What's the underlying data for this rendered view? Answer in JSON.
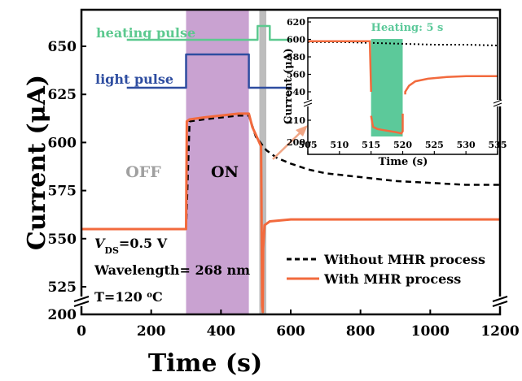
{
  "chart_data": {
    "type": "line",
    "xlabel": "Time (s)",
    "ylabel": "Current (μA)",
    "xlim": [
      0,
      1200
    ],
    "x_ticks": [
      "0",
      "200",
      "400",
      "600",
      "800",
      "1000",
      "1200"
    ],
    "y_ticks": [
      "200",
      "525",
      "550",
      "575",
      "600",
      "625",
      "650"
    ],
    "y_axis_break": [
      210,
      525
    ],
    "grid": false,
    "legend_position": "bottom-right",
    "shaded_regions": [
      {
        "x0": 300,
        "x1": 480,
        "color": "#c9a2d1"
      },
      {
        "x0": 510,
        "x1": 530,
        "color": "#bdbdbd"
      }
    ],
    "annotations": {
      "off_label": "OFF",
      "on_label": "ON",
      "heating_pulse_label": "heating pulse",
      "light_pulse_label": "light pulse",
      "vds_symbol": "V",
      "vds_subscript": "DS",
      "vds_value": "=0.5 V",
      "wavelength": "Wavelength= 268 nm",
      "temp_prefix": "T=120 ",
      "temp_degree": "o",
      "temp_unit": "C"
    },
    "series": [
      {
        "name": "Without MHR process",
        "style": "dashed",
        "color": "#000000",
        "x": [
          300,
          310,
          350,
          400,
          450,
          480,
          500,
          530,
          560,
          600,
          650,
          700,
          800,
          900,
          1000,
          1100,
          1200
        ],
        "y": [
          555,
          611,
          612,
          613,
          614,
          614,
          603,
          596,
          592,
          589,
          586,
          584,
          582,
          580,
          579,
          578,
          578
        ]
      },
      {
        "name": "With MHR process",
        "style": "solid",
        "color": "#f26a3d",
        "x": [
          0,
          100,
          200,
          300,
          302,
          310,
          350,
          400,
          450,
          480,
          490,
          500,
          510,
          515,
          516,
          518,
          520,
          521,
          525,
          540,
          600,
          800,
          1000,
          1200
        ],
        "y": [
          555,
          555,
          555,
          555,
          611,
          612,
          613,
          614,
          615,
          615,
          608,
          604,
          600,
          598,
          575,
          207,
          202,
          545,
          557,
          559,
          560,
          560,
          560,
          560
        ]
      },
      {
        "name": "heating pulse",
        "color": "#5cc98f",
        "x": [
          130,
          505,
          505,
          540,
          540,
          600
        ],
        "y": [
          0,
          0,
          1,
          1,
          0,
          0
        ]
      },
      {
        "name": "light pulse",
        "color": "#2e4da0",
        "x": [
          130,
          300,
          300,
          480,
          480,
          600
        ],
        "y": [
          0,
          0,
          1,
          1,
          0,
          0
        ]
      }
    ],
    "inset": {
      "title": "Heating: 5 s",
      "xlabel": "Time (s)",
      "ylabel": "Current (μA)",
      "xlim": [
        505,
        535
      ],
      "x_ticks": [
        "505",
        "510",
        "515",
        "520",
        "525",
        "530",
        "535"
      ],
      "y_ticks": [
        "200",
        "210",
        "540",
        "560",
        "580",
        "600",
        "620"
      ],
      "y_axis_break": [
        215,
        535
      ],
      "shaded_region": {
        "x0": 515,
        "x1": 520,
        "color": "#5cc99a"
      },
      "series": [
        {
          "name": "Without MHR process",
          "style": "dotted",
          "x": [
            505,
            510,
            515,
            520,
            525,
            530,
            535
          ],
          "y": [
            597,
            597,
            596,
            595,
            594,
            594,
            593
          ]
        },
        {
          "name": "With MHR process",
          "style": "solid",
          "x": [
            505,
            510,
            514.8,
            515,
            515.3,
            516,
            517,
            518,
            519,
            519.8,
            520,
            520.4,
            521,
            522,
            524,
            527,
            530,
            535
          ],
          "y": [
            598,
            598,
            598,
            540,
            207,
            206,
            205.5,
            205,
            204.5,
            204,
            205,
            540,
            547,
            552,
            555,
            557,
            558,
            558
          ]
        }
      ]
    }
  }
}
